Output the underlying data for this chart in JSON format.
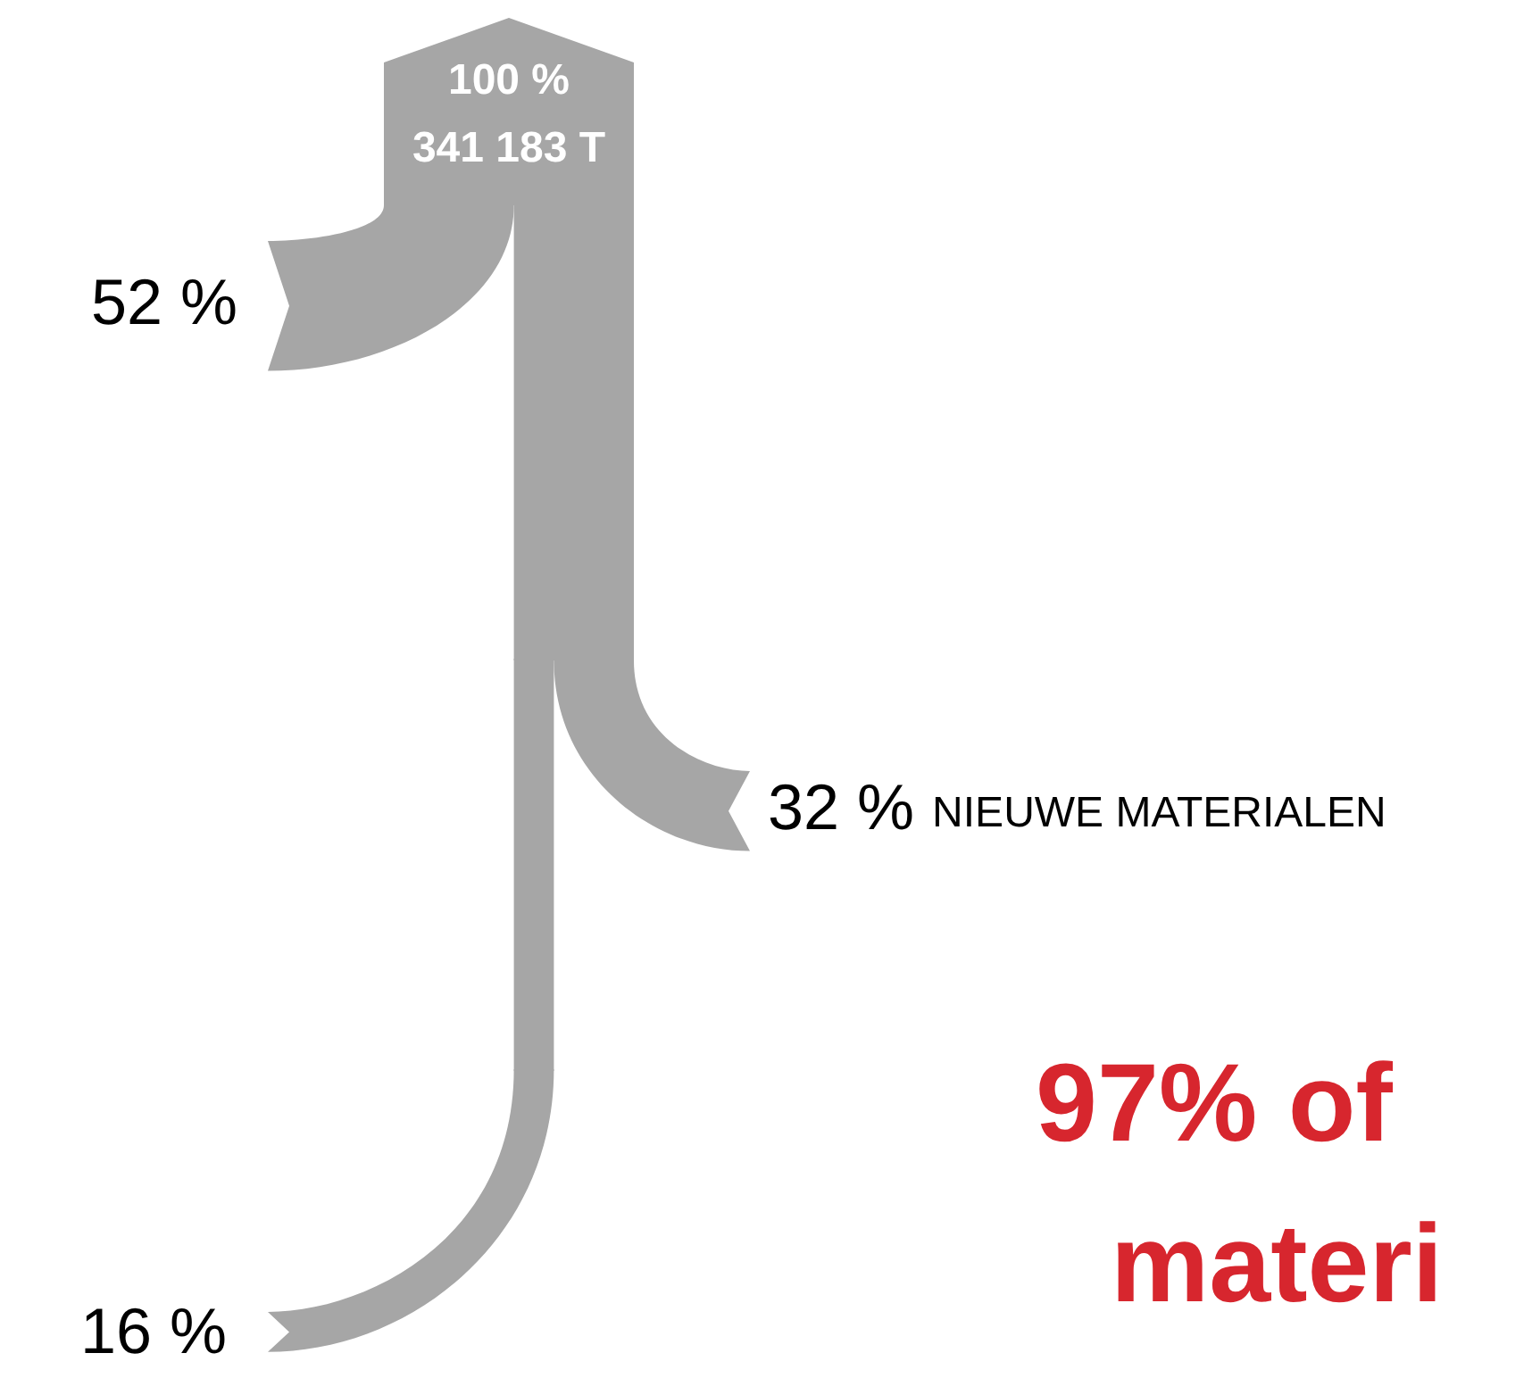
{
  "chart_data": {
    "type": "other",
    "categories": [
      null,
      "NIEUWE MATERIALEN",
      null
    ],
    "values": [
      52,
      32,
      16
    ],
    "value_labels": [
      "52 %",
      "32 %",
      "16 %"
    ],
    "colors": [
      "#a6a6a6",
      "#a6a6a6",
      "#a6a6a6"
    ],
    "annotations": [
      "100 %",
      "341 183 T",
      "97% of",
      "materi"
    ]
  }
}
